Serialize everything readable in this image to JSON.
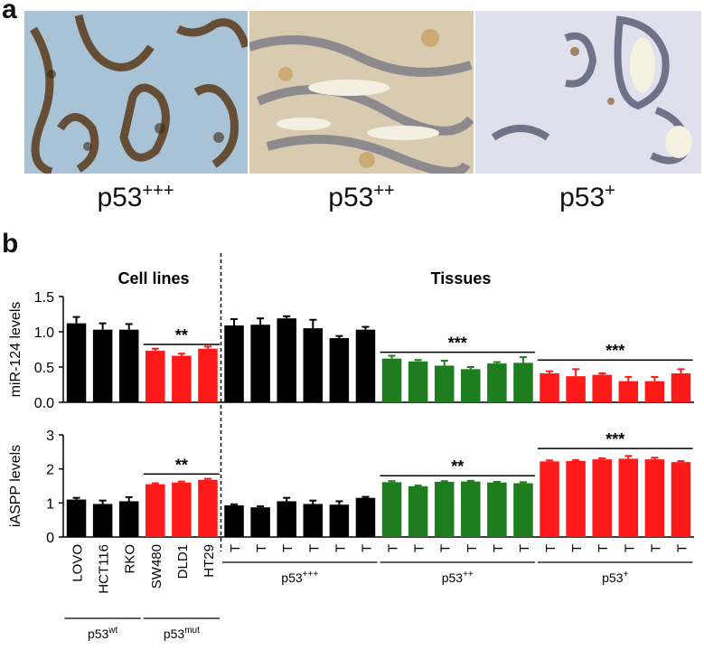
{
  "panel_a": {
    "letter": "a",
    "images": [
      {
        "label_base": "p53",
        "label_sup": "+++",
        "stain": "strong nuclear brown on blue"
      },
      {
        "label_base": "p53",
        "label_sup": "++",
        "stain": "moderate brown"
      },
      {
        "label_base": "p53",
        "label_sup": "+",
        "stain": "weak, mostly blue"
      }
    ]
  },
  "panel_b": {
    "letter": "b"
  },
  "chart_data": {
    "type": "bar",
    "section_titles": [
      "Cell lines",
      "Tissues"
    ],
    "categories": [
      "LOVO",
      "HCT116",
      "RKO",
      "SW480",
      "DLD1",
      "HT29",
      "T",
      "T",
      "T",
      "T",
      "T",
      "T",
      "T",
      "T",
      "T",
      "T",
      "T",
      "T",
      "T",
      "T",
      "T",
      "T",
      "T",
      "T"
    ],
    "bar_colors": [
      "black",
      "black",
      "black",
      "red",
      "red",
      "red",
      "black",
      "black",
      "black",
      "black",
      "black",
      "black",
      "green",
      "green",
      "green",
      "green",
      "green",
      "green",
      "red",
      "red",
      "red",
      "red",
      "red",
      "red"
    ],
    "colors": {
      "black": "#000000",
      "red": "#ff1a1a",
      "green": "#1e7d1e"
    },
    "group_labels": [
      {
        "base": "p53",
        "sup": "wt",
        "from": 0,
        "to": 2
      },
      {
        "base": "p53",
        "sup": "mut",
        "from": 3,
        "to": 5
      },
      {
        "base": "p53",
        "sup": "+++",
        "from": 6,
        "to": 11
      },
      {
        "base": "p53",
        "sup": "++",
        "from": 12,
        "to": 17
      },
      {
        "base": "p53",
        "sup": "+",
        "from": 18,
        "to": 23
      }
    ],
    "subplots": [
      {
        "ylabel": "miR-124 levels",
        "ylim": [
          0,
          1.5
        ],
        "yticks": [
          "0.0",
          "0.5",
          "1.0",
          "1.5"
        ],
        "ytick_values": [
          0,
          0.5,
          1.0,
          1.5
        ],
        "values": [
          1.12,
          1.03,
          1.03,
          0.73,
          0.66,
          0.76,
          1.09,
          1.1,
          1.19,
          1.05,
          0.91,
          1.03,
          0.62,
          0.58,
          0.52,
          0.47,
          0.55,
          0.56,
          0.41,
          0.37,
          0.39,
          0.3,
          0.3,
          0.41
        ],
        "errors": [
          0.09,
          0.09,
          0.08,
          0.03,
          0.03,
          0.03,
          0.09,
          0.09,
          0.03,
          0.12,
          0.03,
          0.04,
          0.04,
          0.02,
          0.07,
          0.03,
          0.02,
          0.08,
          0.03,
          0.1,
          0.02,
          0.06,
          0.06,
          0.06
        ],
        "significance": [
          {
            "text": "**",
            "from": 3,
            "to": 5,
            "y": 0.82
          },
          {
            "text": "***",
            "from": 12,
            "to": 17,
            "y": 0.71
          },
          {
            "text": "***",
            "from": 18,
            "to": 23,
            "y": 0.6
          }
        ]
      },
      {
        "ylabel": "iASPP levels",
        "ylim": [
          0,
          3
        ],
        "yticks": [
          "0",
          "1",
          "2",
          "3"
        ],
        "ytick_values": [
          0,
          1,
          2,
          3
        ],
        "values": [
          1.1,
          0.97,
          1.05,
          1.55,
          1.6,
          1.68,
          0.93,
          0.87,
          1.05,
          0.97,
          0.95,
          1.15,
          1.61,
          1.49,
          1.62,
          1.63,
          1.6,
          1.58,
          2.22,
          2.23,
          2.28,
          2.3,
          2.28,
          2.2
        ],
        "errors": [
          0.05,
          0.1,
          0.12,
          0.03,
          0.03,
          0.03,
          0.03,
          0.03,
          0.1,
          0.1,
          0.1,
          0.03,
          0.03,
          0.02,
          0.02,
          0.02,
          0.02,
          0.03,
          0.03,
          0.03,
          0.03,
          0.08,
          0.05,
          0.03
        ],
        "significance": [
          {
            "text": "**",
            "from": 3,
            "to": 5,
            "y": 1.85
          },
          {
            "text": "**",
            "from": 12,
            "to": 17,
            "y": 1.8
          },
          {
            "text": "***",
            "from": 18,
            "to": 23,
            "y": 2.6
          }
        ]
      }
    ],
    "divider_after_index": 5,
    "grid": false
  }
}
